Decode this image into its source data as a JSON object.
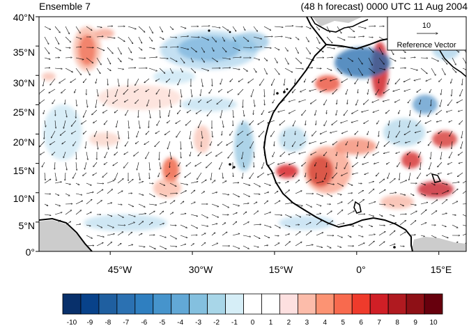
{
  "header": {
    "left_title": "Ensemble 7",
    "right_title": "(48 h forecast) 0000 UTC 11 Aug 2004"
  },
  "map": {
    "lat_labels": [
      "40°N",
      "35°N",
      "30°N",
      "25°N",
      "20°N",
      "15°N",
      "10°N",
      "5°N",
      "0°"
    ],
    "lon_labels": [
      "45°W",
      "30°W",
      "15°W",
      "0°",
      "15°E"
    ],
    "lon_range": [
      -58,
      20
    ],
    "lat_range": [
      0,
      40
    ],
    "land_color": "#cccccc",
    "coastline_color": "#000000"
  },
  "reference_vector": {
    "value": "10",
    "label": "Reference Vector"
  },
  "colorbar": {
    "labels": [
      "-10",
      "-9",
      "-8",
      "-7",
      "-6",
      "-5",
      "-4",
      "-3",
      "-2",
      "-1",
      "0",
      "1",
      "2",
      "3",
      "4",
      "5",
      "6",
      "7",
      "8",
      "9",
      "10"
    ],
    "colors": [
      "#08306b",
      "#08428a",
      "#1f5fa0",
      "#2b71b2",
      "#2f7fc0",
      "#4694cc",
      "#62a8d6",
      "#84c0df",
      "#a8d6e8",
      "#d6eef7",
      "#ffffff",
      "#ffffff",
      "#fde0e0",
      "#fcbcaa",
      "#fc9373",
      "#f86a4e",
      "#ef3b2c",
      "#d01f26",
      "#b01a20",
      "#8e1016",
      "#67000d"
    ]
  }
}
